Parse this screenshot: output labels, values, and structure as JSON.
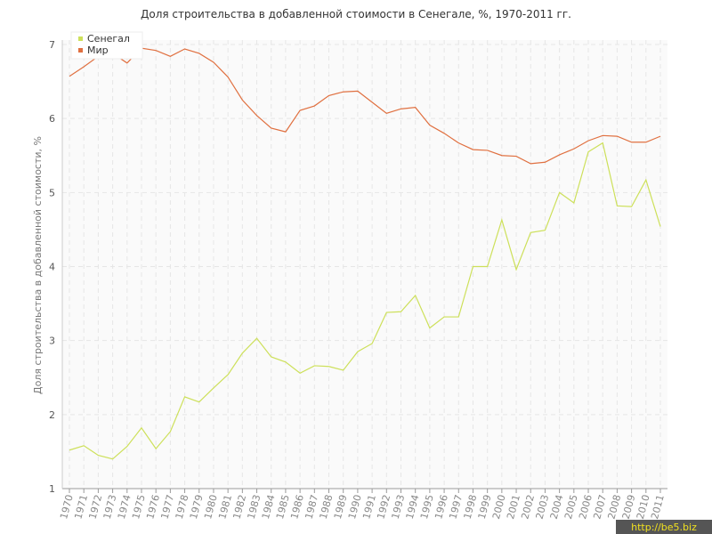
{
  "chart_data": {
    "type": "line",
    "title": "Доля строительства в добавленной стоимости в Сенегале, %, 1970-2011 гг.",
    "y_label": "Доля строительства в добавленной стоимости, %",
    "categories": [
      "1970",
      "1971",
      "1972",
      "1973",
      "1974",
      "1975",
      "1976",
      "1977",
      "1978",
      "1979",
      "1980",
      "1981",
      "1982",
      "1983",
      "1984",
      "1985",
      "1986",
      "1987",
      "1988",
      "1989",
      "1990",
      "1991",
      "1992",
      "1993",
      "1994",
      "1995",
      "1996",
      "1997",
      "1998",
      "1999",
      "2000",
      "2001",
      "2002",
      "2003",
      "2004",
      "2005",
      "2006",
      "2007",
      "2008",
      "2009",
      "2010",
      "2011"
    ],
    "series": [
      {
        "name": "Сенегал",
        "color": "#cde05a",
        "values": [
          1.52,
          1.58,
          1.45,
          1.4,
          1.57,
          1.82,
          1.54,
          1.77,
          2.24,
          2.17,
          2.36,
          2.54,
          2.83,
          3.03,
          2.78,
          2.71,
          2.56,
          2.66,
          2.65,
          2.6,
          2.85,
          2.96,
          3.38,
          3.39,
          3.61,
          3.17,
          3.32,
          3.32,
          4.0,
          4.0,
          4.63,
          3.96,
          4.46,
          4.49,
          5.0,
          4.86,
          5.55,
          5.67,
          4.82,
          4.81,
          5.17,
          4.54
        ]
      },
      {
        "name": "Мир",
        "color": "#e07040",
        "values": [
          6.57,
          6.7,
          6.84,
          6.88,
          6.75,
          6.95,
          6.92,
          6.84,
          6.94,
          6.88,
          6.76,
          6.56,
          6.25,
          6.04,
          5.87,
          5.82,
          6.11,
          6.17,
          6.31,
          6.36,
          6.37,
          6.22,
          6.07,
          6.13,
          6.15,
          5.91,
          5.8,
          5.67,
          5.58,
          5.57,
          5.5,
          5.49,
          5.39,
          5.41,
          5.51,
          5.59,
          5.7,
          5.77,
          5.76,
          5.68,
          5.68,
          5.76
        ]
      }
    ],
    "ylim": [
      1,
      7
    ],
    "yticks": [
      1,
      2,
      3,
      4,
      5,
      6,
      7
    ],
    "grid": true,
    "legend": "top-left",
    "watermark": "http://be5.biz"
  }
}
